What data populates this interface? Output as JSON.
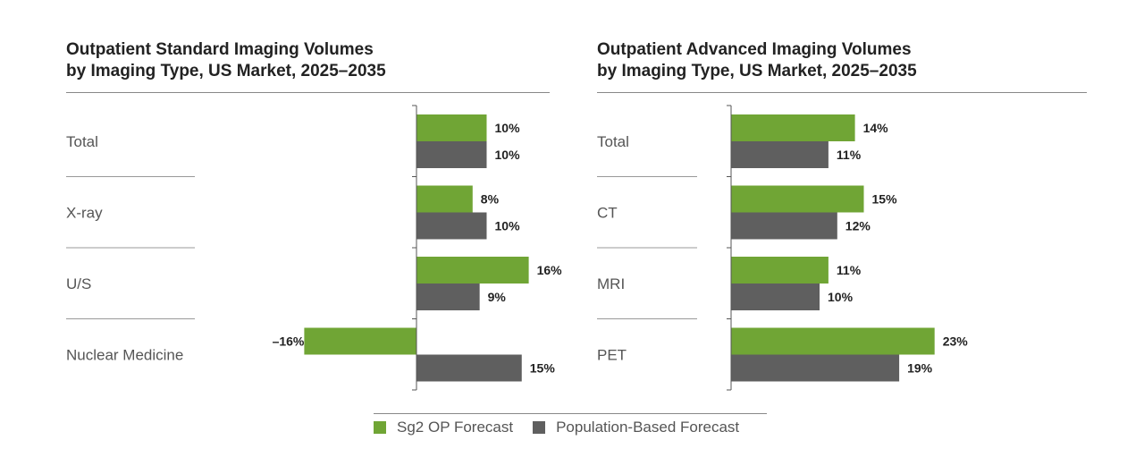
{
  "colors": {
    "sg2": "#70a535",
    "population": "#5f5f5f"
  },
  "legend": {
    "items": [
      {
        "label": "Sg2 OP Forecast",
        "color": "#70a535"
      },
      {
        "label": "Population-Based Forecast",
        "color": "#5f5f5f"
      }
    ]
  },
  "chart_data": [
    {
      "type": "bar",
      "orientation": "horizontal",
      "title_bold_1": "Outpatient Standard Imaging Volumes",
      "title_bold_2": "by Imaging Type,",
      "title_rest": " US Market, 2025–2035",
      "categories": [
        "Total",
        "X-ray",
        "U/S",
        "Nuclear Medicine"
      ],
      "series": [
        {
          "name": "Sg2 OP Forecast",
          "values": [
            10,
            8,
            16,
            -16
          ],
          "labels": [
            "10%",
            "8%",
            "16%",
            "–16%"
          ]
        },
        {
          "name": "Population-Based Forecast",
          "values": [
            10,
            10,
            9,
            15
          ],
          "labels": [
            "10%",
            "10%",
            "9%",
            "15%"
          ]
        }
      ],
      "xlim": [
        -20,
        20
      ]
    },
    {
      "type": "bar",
      "orientation": "horizontal",
      "title_bold_1": "Outpatient Advanced Imaging Volumes",
      "title_bold_2": "by Imaging Type,",
      "title_rest": " US Market, 2025–2035",
      "categories": [
        "Total",
        "CT",
        "MRI",
        "PET"
      ],
      "series": [
        {
          "name": "Sg2 OP Forecast",
          "values": [
            14,
            15,
            11,
            23
          ],
          "labels": [
            "14%",
            "15%",
            "11%",
            "23%"
          ]
        },
        {
          "name": "Population-Based Forecast",
          "values": [
            11,
            12,
            10,
            19
          ],
          "labels": [
            "11%",
            "12%",
            "10%",
            "19%"
          ]
        }
      ],
      "xlim": [
        0,
        30
      ]
    }
  ]
}
